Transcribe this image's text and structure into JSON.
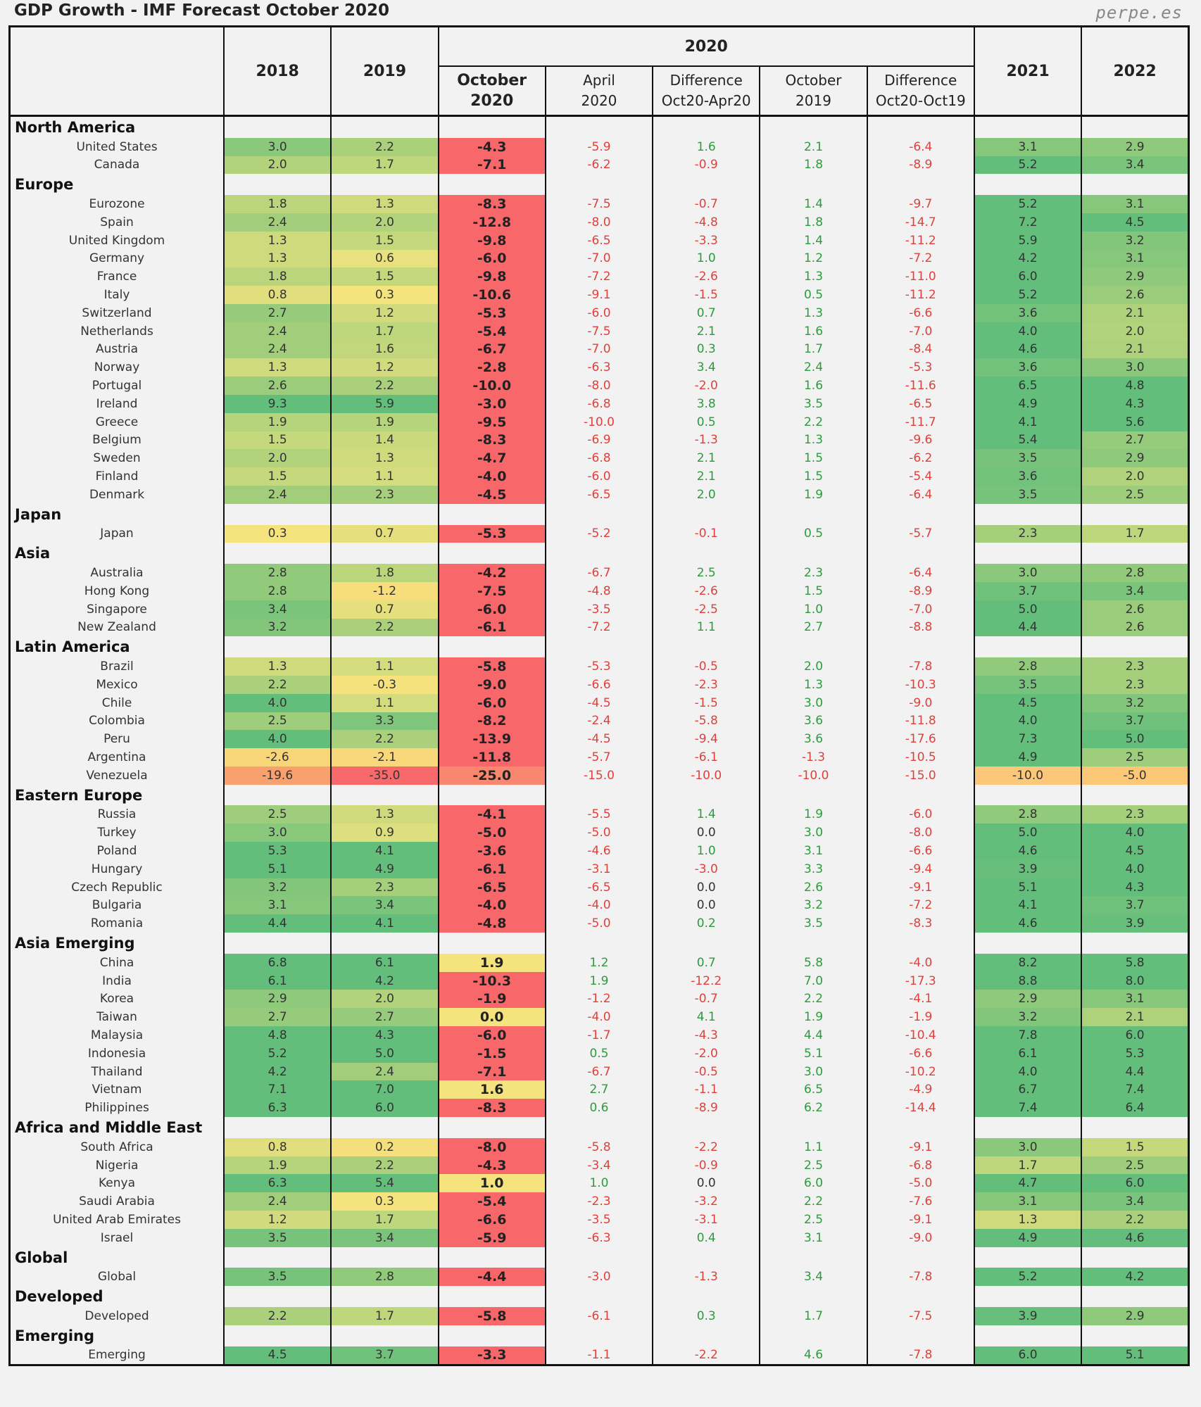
{
  "title": "GDP Growth - IMF Forecast October 2020",
  "brand": "perpe.es",
  "header": {
    "y2018": "2018",
    "y2019": "2019",
    "y2020": "2020",
    "y2021": "2021",
    "y2022": "2022",
    "oct2020": [
      "October",
      "2020"
    ],
    "apr2020": [
      "April",
      "2020"
    ],
    "diff_apr": [
      "Difference",
      "Oct20-Apr20"
    ],
    "oct2019": [
      "October",
      "2019"
    ],
    "diff_oct": [
      "Difference",
      "Oct20-Oct19"
    ]
  },
  "colors": {
    "neg_text": "#e0403c",
    "pos_text": "#2e9a3e",
    "scale_low": "#f8686b",
    "scale_mid": "#f5e47d",
    "scale_high": "#63be7b"
  },
  "chart_data": {
    "type": "table",
    "title": "GDP Growth - IMF Forecast October 2020",
    "columns": [
      "2018",
      "2019",
      "October 2020",
      "April 2020",
      "Difference Oct20-Apr20",
      "October 2019",
      "Difference Oct20-Oct19",
      "2021",
      "2022"
    ],
    "regions": [
      {
        "name": "North America",
        "rows": [
          [
            "United States",
            "3.0",
            "2.2",
            "-4.3",
            "-5.9",
            "1.6",
            "2.1",
            "-6.4",
            "3.1",
            "2.9"
          ],
          [
            "Canada",
            "2.0",
            "1.7",
            "-7.1",
            "-6.2",
            "-0.9",
            "1.8",
            "-8.9",
            "5.2",
            "3.4"
          ]
        ]
      },
      {
        "name": "Europe",
        "rows": [
          [
            "Eurozone",
            "1.8",
            "1.3",
            "-8.3",
            "-7.5",
            "-0.7",
            "1.4",
            "-9.7",
            "5.2",
            "3.1"
          ],
          [
            "Spain",
            "2.4",
            "2.0",
            "-12.8",
            "-8.0",
            "-4.8",
            "1.8",
            "-14.7",
            "7.2",
            "4.5"
          ],
          [
            "United Kingdom",
            "1.3",
            "1.5",
            "-9.8",
            "-6.5",
            "-3.3",
            "1.4",
            "-11.2",
            "5.9",
            "3.2"
          ],
          [
            "Germany",
            "1.3",
            "0.6",
            "-6.0",
            "-7.0",
            "1.0",
            "1.2",
            "-7.2",
            "4.2",
            "3.1"
          ],
          [
            "France",
            "1.8",
            "1.5",
            "-9.8",
            "-7.2",
            "-2.6",
            "1.3",
            "-11.0",
            "6.0",
            "2.9"
          ],
          [
            "Italy",
            "0.8",
            "0.3",
            "-10.6",
            "-9.1",
            "-1.5",
            "0.5",
            "-11.2",
            "5.2",
            "2.6"
          ],
          [
            "Switzerland",
            "2.7",
            "1.2",
            "-5.3",
            "-6.0",
            "0.7",
            "1.3",
            "-6.6",
            "3.6",
            "2.1"
          ],
          [
            "Netherlands",
            "2.4",
            "1.7",
            "-5.4",
            "-7.5",
            "2.1",
            "1.6",
            "-7.0",
            "4.0",
            "2.0"
          ],
          [
            "Austria",
            "2.4",
            "1.6",
            "-6.7",
            "-7.0",
            "0.3",
            "1.7",
            "-8.4",
            "4.6",
            "2.1"
          ],
          [
            "Norway",
            "1.3",
            "1.2",
            "-2.8",
            "-6.3",
            "3.4",
            "2.4",
            "-5.3",
            "3.6",
            "3.0"
          ],
          [
            "Portugal",
            "2.6",
            "2.2",
            "-10.0",
            "-8.0",
            "-2.0",
            "1.6",
            "-11.6",
            "6.5",
            "4.8"
          ],
          [
            "Ireland",
            "9.3",
            "5.9",
            "-3.0",
            "-6.8",
            "3.8",
            "3.5",
            "-6.5",
            "4.9",
            "4.3"
          ],
          [
            "Greece",
            "1.9",
            "1.9",
            "-9.5",
            "-10.0",
            "0.5",
            "2.2",
            "-11.7",
            "4.1",
            "5.6"
          ],
          [
            "Belgium",
            "1.5",
            "1.4",
            "-8.3",
            "-6.9",
            "-1.3",
            "1.3",
            "-9.6",
            "5.4",
            "2.7"
          ],
          [
            "Sweden",
            "2.0",
            "1.3",
            "-4.7",
            "-6.8",
            "2.1",
            "1.5",
            "-6.2",
            "3.5",
            "2.9"
          ],
          [
            "Finland",
            "1.5",
            "1.1",
            "-4.0",
            "-6.0",
            "2.1",
            "1.5",
            "-5.4",
            "3.6",
            "2.0"
          ],
          [
            "Denmark",
            "2.4",
            "2.3",
            "-4.5",
            "-6.5",
            "2.0",
            "1.9",
            "-6.4",
            "3.5",
            "2.5"
          ]
        ]
      },
      {
        "name": "Japan",
        "rows": [
          [
            "Japan",
            "0.3",
            "0.7",
            "-5.3",
            "-5.2",
            "-0.1",
            "0.5",
            "-5.7",
            "2.3",
            "1.7"
          ]
        ]
      },
      {
        "name": "Asia",
        "rows": [
          [
            "Australia",
            "2.8",
            "1.8",
            "-4.2",
            "-6.7",
            "2.5",
            "2.3",
            "-6.4",
            "3.0",
            "2.8"
          ],
          [
            "Hong Kong",
            "2.8",
            "-1.2",
            "-7.5",
            "-4.8",
            "-2.6",
            "1.5",
            "-8.9",
            "3.7",
            "3.4"
          ],
          [
            "Singapore",
            "3.4",
            "0.7",
            "-6.0",
            "-3.5",
            "-2.5",
            "1.0",
            "-7.0",
            "5.0",
            "2.6"
          ],
          [
            "New Zealand",
            "3.2",
            "2.2",
            "-6.1",
            "-7.2",
            "1.1",
            "2.7",
            "-8.8",
            "4.4",
            "2.6"
          ]
        ]
      },
      {
        "name": "Latin America",
        "rows": [
          [
            "Brazil",
            "1.3",
            "1.1",
            "-5.8",
            "-5.3",
            "-0.5",
            "2.0",
            "-7.8",
            "2.8",
            "2.3"
          ],
          [
            "Mexico",
            "2.2",
            "-0.3",
            "-9.0",
            "-6.6",
            "-2.3",
            "1.3",
            "-10.3",
            "3.5",
            "2.3"
          ],
          [
            "Chile",
            "4.0",
            "1.1",
            "-6.0",
            "-4.5",
            "-1.5",
            "3.0",
            "-9.0",
            "4.5",
            "3.2"
          ],
          [
            "Colombia",
            "2.5",
            "3.3",
            "-8.2",
            "-2.4",
            "-5.8",
            "3.6",
            "-11.8",
            "4.0",
            "3.7"
          ],
          [
            "Peru",
            "4.0",
            "2.2",
            "-13.9",
            "-4.5",
            "-9.4",
            "3.6",
            "-17.6",
            "7.3",
            "5.0"
          ],
          [
            "Argentina",
            "-2.6",
            "-2.1",
            "-11.8",
            "-5.7",
            "-6.1",
            "-1.3",
            "-10.5",
            "4.9",
            "2.5"
          ],
          [
            "Venezuela",
            "-19.6",
            "-35.0",
            "-25.0",
            "-15.0",
            "-10.0",
            "-10.0",
            "-15.0",
            "-10.0",
            "-5.0"
          ]
        ]
      },
      {
        "name": "Eastern Europe",
        "rows": [
          [
            "Russia",
            "2.5",
            "1.3",
            "-4.1",
            "-5.5",
            "1.4",
            "1.9",
            "-6.0",
            "2.8",
            "2.3"
          ],
          [
            "Turkey",
            "3.0",
            "0.9",
            "-5.0",
            "-5.0",
            "0.0",
            "3.0",
            "-8.0",
            "5.0",
            "4.0"
          ],
          [
            "Poland",
            "5.3",
            "4.1",
            "-3.6",
            "-4.6",
            "1.0",
            "3.1",
            "-6.6",
            "4.6",
            "4.5"
          ],
          [
            "Hungary",
            "5.1",
            "4.9",
            "-6.1",
            "-3.1",
            "-3.0",
            "3.3",
            "-9.4",
            "3.9",
            "4.0"
          ],
          [
            "Czech Republic",
            "3.2",
            "2.3",
            "-6.5",
            "-6.5",
            "0.0",
            "2.6",
            "-9.1",
            "5.1",
            "4.3"
          ],
          [
            "Bulgaria",
            "3.1",
            "3.4",
            "-4.0",
            "-4.0",
            "0.0",
            "3.2",
            "-7.2",
            "4.1",
            "3.7"
          ],
          [
            "Romania",
            "4.4",
            "4.1",
            "-4.8",
            "-5.0",
            "0.2",
            "3.5",
            "-8.3",
            "4.6",
            "3.9"
          ]
        ]
      },
      {
        "name": "Asia Emerging",
        "rows": [
          [
            "China",
            "6.8",
            "6.1",
            "1.9",
            "1.2",
            "0.7",
            "5.8",
            "-4.0",
            "8.2",
            "5.8"
          ],
          [
            "India",
            "6.1",
            "4.2",
            "-10.3",
            "1.9",
            "-12.2",
            "7.0",
            "-17.3",
            "8.8",
            "8.0"
          ],
          [
            "Korea",
            "2.9",
            "2.0",
            "-1.9",
            "-1.2",
            "-0.7",
            "2.2",
            "-4.1",
            "2.9",
            "3.1"
          ],
          [
            "Taiwan",
            "2.7",
            "2.7",
            "0.0",
            "-4.0",
            "4.1",
            "1.9",
            "-1.9",
            "3.2",
            "2.1"
          ],
          [
            "Malaysia",
            "4.8",
            "4.3",
            "-6.0",
            "-1.7",
            "-4.3",
            "4.4",
            "-10.4",
            "7.8",
            "6.0"
          ],
          [
            "Indonesia",
            "5.2",
            "5.0",
            "-1.5",
            "0.5",
            "-2.0",
            "5.1",
            "-6.6",
            "6.1",
            "5.3"
          ],
          [
            "Thailand",
            "4.2",
            "2.4",
            "-7.1",
            "-6.7",
            "-0.5",
            "3.0",
            "-10.2",
            "4.0",
            "4.4"
          ],
          [
            "Vietnam",
            "7.1",
            "7.0",
            "1.6",
            "2.7",
            "-1.1",
            "6.5",
            "-4.9",
            "6.7",
            "7.4"
          ],
          [
            "Philippines",
            "6.3",
            "6.0",
            "-8.3",
            "0.6",
            "-8.9",
            "6.2",
            "-14.4",
            "7.4",
            "6.4"
          ]
        ]
      },
      {
        "name": "Africa and Middle East",
        "rows": [
          [
            "South Africa",
            "0.8",
            "0.2",
            "-8.0",
            "-5.8",
            "-2.2",
            "1.1",
            "-9.1",
            "3.0",
            "1.5"
          ],
          [
            "Nigeria",
            "1.9",
            "2.2",
            "-4.3",
            "-3.4",
            "-0.9",
            "2.5",
            "-6.8",
            "1.7",
            "2.5"
          ],
          [
            "Kenya",
            "6.3",
            "5.4",
            "1.0",
            "1.0",
            "0.0",
            "6.0",
            "-5.0",
            "4.7",
            "6.0"
          ],
          [
            "Saudi Arabia",
            "2.4",
            "0.3",
            "-5.4",
            "-2.3",
            "-3.2",
            "2.2",
            "-7.6",
            "3.1",
            "3.4"
          ],
          [
            "United Arab Emirates",
            "1.2",
            "1.7",
            "-6.6",
            "-3.5",
            "-3.1",
            "2.5",
            "-9.1",
            "1.3",
            "2.2"
          ],
          [
            "Israel",
            "3.5",
            "3.4",
            "-5.9",
            "-6.3",
            "0.4",
            "3.1",
            "-9.0",
            "4.9",
            "4.6"
          ]
        ]
      },
      {
        "name": "Global",
        "rows": [
          [
            "Global",
            "3.5",
            "2.8",
            "-4.4",
            "-3.0",
            "-1.3",
            "3.4",
            "-7.8",
            "5.2",
            "4.2"
          ]
        ]
      },
      {
        "name": "Developed",
        "rows": [
          [
            "Developed",
            "2.2",
            "1.7",
            "-5.8",
            "-6.1",
            "0.3",
            "1.7",
            "-7.5",
            "3.9",
            "2.9"
          ]
        ]
      },
      {
        "name": "Emerging",
        "rows": [
          [
            "Emerging",
            "4.5",
            "3.7",
            "-3.3",
            "-1.1",
            "-2.2",
            "4.6",
            "-7.8",
            "6.0",
            "5.1"
          ]
        ]
      }
    ]
  }
}
